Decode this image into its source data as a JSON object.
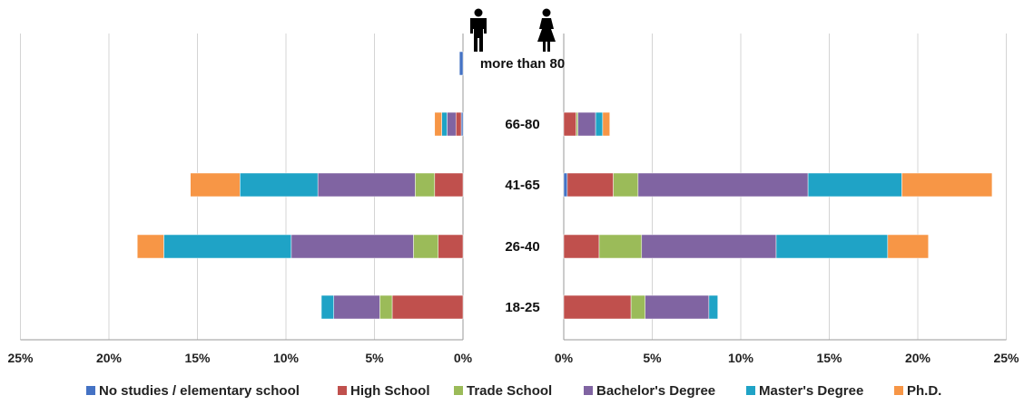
{
  "chart_data": {
    "type": "bar",
    "orientation": "horizontal-diverging",
    "categories": [
      "more than 80",
      "66-80",
      "41-65",
      "26-40",
      "18-25"
    ],
    "x_ticks": [
      "25%",
      "20%",
      "15%",
      "10%",
      "5%",
      "0%",
      "0%",
      "5%",
      "10%",
      "15%",
      "20%",
      "25%"
    ],
    "xlim": [
      0,
      25
    ],
    "grid": true,
    "legend_position": "bottom",
    "icons": {
      "left": "male-icon",
      "right": "female-icon"
    },
    "series": [
      {
        "name": "No studies / elementary school",
        "color": "#4472C4",
        "male": [
          0.2,
          0.1,
          0.0,
          0.0,
          0.0
        ],
        "female": [
          0.0,
          0.0,
          0.2,
          0.0,
          0.0
        ]
      },
      {
        "name": "High School",
        "color": "#C0504D",
        "male": [
          0.0,
          0.3,
          1.6,
          1.4,
          4.0
        ],
        "female": [
          0.0,
          0.7,
          2.6,
          2.0,
          3.8
        ]
      },
      {
        "name": "Trade School",
        "color": "#9BBB59",
        "male": [
          0.0,
          0.0,
          1.1,
          1.4,
          0.7
        ],
        "female": [
          0.0,
          0.1,
          1.4,
          2.4,
          0.8
        ]
      },
      {
        "name": "Bachelor's Degree",
        "color": "#8064A2",
        "male": [
          0.0,
          0.5,
          5.5,
          6.9,
          2.6
        ],
        "female": [
          0.0,
          1.0,
          9.6,
          7.6,
          3.6
        ]
      },
      {
        "name": "Master's Degree",
        "color": "#1FA3C6",
        "male": [
          0.0,
          0.3,
          4.4,
          7.2,
          0.7
        ],
        "female": [
          0.0,
          0.4,
          5.3,
          6.3,
          0.5
        ]
      },
      {
        "name": "Ph.D.",
        "color": "#F79646",
        "male": [
          0.0,
          0.4,
          2.8,
          1.5,
          0.0
        ],
        "female": [
          0.0,
          0.4,
          5.1,
          2.3,
          0.0
        ]
      }
    ]
  }
}
